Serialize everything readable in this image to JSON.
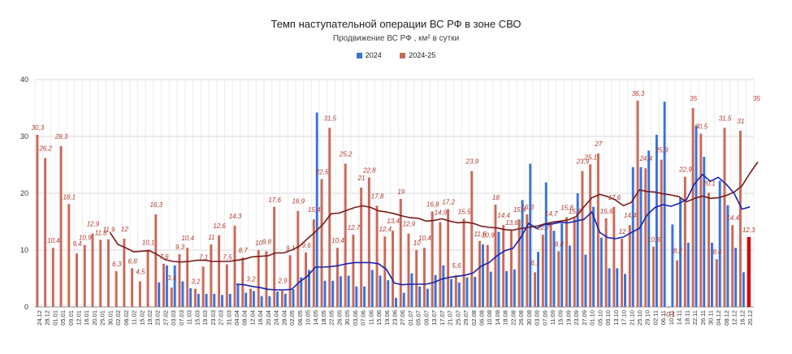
{
  "chart_data": {
    "type": "bar",
    "title": "Темп наступательной операции ВС РФ в зоне СВО",
    "subtitle": "Продвижение ВС РФ , км² в сутки",
    "ylim": [
      0,
      40
    ],
    "yticks": [
      "0",
      "10",
      "20",
      "30",
      "40"
    ],
    "legend_position": "top",
    "grid": true,
    "series": [
      {
        "name": "2024",
        "color": "#3a72d8"
      },
      {
        "name": "2024-25",
        "color": "#c9685a"
      }
    ],
    "trend_colors": {
      "2024": "#1a24b0",
      "2024-25": "#7a1a1a"
    },
    "categories": [
      "24.12",
      "28.12",
      "01.01",
      "05.01",
      "09.01",
      "12.01",
      "16.01",
      "20.01",
      "25.01",
      "30.01",
      "02.02",
      "06.02",
      "11.02",
      "15.02",
      "19.02",
      "23.02",
      "27.02",
      "03.03",
      "07.03",
      "11.03",
      "15.03",
      "19.03",
      "23.03",
      "27.03",
      "31.03",
      "04.04",
      "08.04",
      "12.04",
      "16.04",
      "20.04",
      "24.04",
      "28.04",
      "02.05",
      "06.05",
      "10.05",
      "14.05",
      "18.05",
      "22.05",
      "26.05",
      "30.05",
      "03.06",
      "07.06",
      "11.06",
      "15.06",
      "19.06",
      "23.06",
      "27.06",
      "01.07",
      "05.07",
      "09.07",
      "13.07",
      "17.07",
      "21.07",
      "25.07",
      "29.07",
      "02.08",
      "06.08",
      "10.08",
      "14.08",
      "18.08",
      "22.08",
      "26.08",
      "30.08",
      "03.09",
      "07.09",
      "11.09",
      "15.09",
      "19.09",
      "23.09",
      "27.09",
      "01.10",
      "05.10",
      "09.10",
      "13.10",
      "17.10",
      "21.10",
      "25.10",
      "29.10",
      "02.11",
      "06.11",
      "10.11",
      "14.11",
      "18.11",
      "22.11",
      "26.11",
      "30.11",
      "04.12",
      "08.12",
      "12.12",
      "16.12",
      "20.12"
    ],
    "values_2024_25": [
      30.3,
      26.2,
      10.4,
      28.3,
      18.1,
      9.4,
      10.9,
      12.9,
      11.8,
      11.9,
      6.3,
      12,
      6.8,
      4.5,
      10.1,
      16.3,
      7.6,
      3.4,
      9.3,
      10.4,
      3.2,
      7.1,
      11,
      12.6,
      7.5,
      14.3,
      8.7,
      3.2,
      10,
      9.8,
      17.6,
      2.9,
      9.1,
      16.9,
      9.6,
      15.4,
      22.5,
      31.5,
      10.4,
      25.2,
      12.7,
      21,
      22.8,
      17.8,
      12.4,
      13.4,
      19,
      12.9,
      10,
      10.4,
      16.8,
      14.9,
      17.2,
      5.6,
      15.5,
      23.9,
      11.6,
      10.9,
      18,
      14.4,
      13.6,
      15.4,
      16.3,
      6.1,
      12.7,
      14.7,
      9.8,
      15.8,
      15.6,
      23.9,
      25.1,
      27,
      15.6,
      17.6,
      12,
      14.4,
      36.3,
      24.4,
      10.6,
      25.9,
      -0.1,
      8.2,
      22.9,
      35,
      30.5,
      20.1,
      8.4,
      31.5,
      14.4,
      31,
      12.3,
      35
    ],
    "values_2024": [
      null,
      null,
      null,
      null,
      null,
      null,
      null,
      null,
      null,
      null,
      null,
      null,
      null,
      null,
      null,
      4.3,
      7.3,
      7.3,
      4.5,
      3.3,
      2.3,
      2.3,
      2.3,
      2.1,
      2.3,
      3.9,
      2.5,
      2.8,
      1.9,
      1.9,
      2.7,
      2.3,
      3.1,
      5.2,
      6.5,
      34.2,
      4.6,
      4.6,
      5.4,
      5.5,
      3.6,
      3.6,
      6.5,
      5.5,
      4.7,
      1.6,
      2.5,
      5.9,
      3.6,
      3.2,
      5.6,
      7.3,
      4.9,
      4.3,
      5.2,
      5.3,
      11,
      6.2,
      13.2,
      6.3,
      6.6,
      18.8,
      25.2,
      9.7,
      21.9,
      13.4,
      14.7,
      10.8,
      20,
      9.2,
      17.6,
      12.2,
      6.8,
      6.8,
      5.8,
      24.6,
      24.6,
      27.5,
      30.3,
      36.1,
      14.5,
      19.2,
      11.3,
      31.9,
      26.4,
      11.3,
      22.2,
      17.9,
      10.4,
      6.1,
      null
    ],
    "trend_2024": [
      null,
      null,
      null,
      null,
      null,
      null,
      null,
      null,
      null,
      null,
      null,
      null,
      null,
      null,
      null,
      null,
      null,
      null,
      null,
      null,
      null,
      null,
      null,
      null,
      null,
      4,
      3.9,
      3.6,
      3.4,
      3.1,
      3.0,
      3.0,
      3.1,
      4.4,
      5.4,
      7.0,
      7.0,
      7.1,
      7.3,
      7.6,
      7.8,
      7.8,
      7.8,
      7.6,
      6.6,
      4.2,
      3.9,
      4.0,
      4.0,
      4.0,
      4.3,
      4.9,
      5.2,
      5.4,
      5.6,
      6.0,
      7.2,
      7.8,
      9.0,
      9.9,
      10.3,
      12.2,
      14.7,
      13.8,
      14.5,
      14.6,
      14.9,
      14.8,
      15.1,
      15.4,
      16.7,
      13.1,
      12.2,
      12.0,
      12.3,
      13.1,
      13.8,
      16.2,
      17.5,
      18.0,
      17.7,
      18.2,
      18.9,
      21.7,
      23.3,
      22.1,
      22.8,
      21.6,
      20.0,
      17.2,
      17.6
    ],
    "trend_2024_25": [
      null,
      null,
      null,
      null,
      null,
      null,
      null,
      null,
      null,
      13.1,
      11.0,
      10.4,
      9.7,
      9.8,
      9.9,
      9.2,
      8.3,
      8.0,
      7.9,
      8.0,
      8.2,
      8.2,
      8.0,
      8.0,
      8.0,
      8.2,
      8.4,
      8.8,
      8.9,
      9.0,
      9.5,
      9.5,
      10.0,
      10.7,
      12.0,
      13.2,
      14.6,
      16.4,
      16.5,
      17.0,
      17.5,
      17.8,
      17.5,
      16.9,
      16.7,
      16.4,
      16.0,
      15.7,
      15.6,
      15.1,
      15.2,
      15.5,
      15.1,
      14.8,
      14.9,
      14.7,
      14.2,
      14.0,
      13.9,
      13.6,
      13.5,
      13.8,
      14.0,
      14.2,
      14.6,
      14.9,
      15.1,
      15.3,
      15.9,
      17.6,
      19.2,
      19.8,
      19.4,
      18.8,
      17.8,
      18.4,
      20.6,
      20.3,
      20.2,
      19.9,
      19.7,
      19.4,
      18.5,
      19.1,
      19.5,
      19.1,
      19.2,
      19.6,
      20.2,
      21.3,
      23.5,
      25.5
    ]
  }
}
